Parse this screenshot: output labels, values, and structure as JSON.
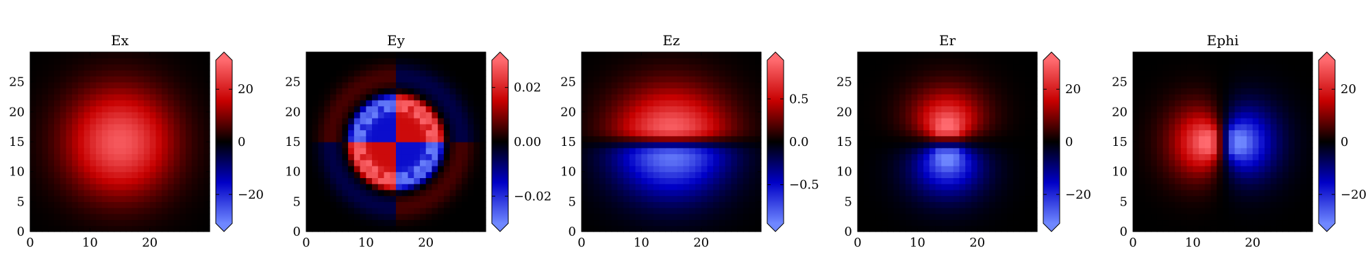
{
  "chart_data": [
    {
      "type": "heatmap",
      "title": "Ex",
      "field": "ex",
      "grid": [
        30,
        30
      ],
      "xlim": [
        0,
        30
      ],
      "ylim": [
        0,
        30
      ],
      "x_ticks": [
        0,
        10,
        20
      ],
      "y_ticks": [
        0,
        5,
        10,
        15,
        20,
        25
      ],
      "colorbar": {
        "range": [
          -31,
          31
        ],
        "extend": "both",
        "ticks": [
          {
            "value": 20,
            "label": "20"
          },
          {
            "value": 0,
            "label": "0"
          },
          {
            "value": -20,
            "label": "−20"
          }
        ]
      },
      "colors": {
        "positive": "#ff6a6f",
        "negative": "#6f87ff",
        "zero": "#000000"
      }
    },
    {
      "type": "heatmap",
      "title": "Ey",
      "field": "ey",
      "grid": [
        30,
        30
      ],
      "xlim": [
        0,
        30
      ],
      "ylim": [
        0,
        30
      ],
      "x_ticks": [
        0,
        10,
        20
      ],
      "y_ticks": [
        0,
        5,
        10,
        15,
        20,
        25
      ],
      "colorbar": {
        "range": [
          -0.03,
          0.03
        ],
        "extend": "both",
        "ticks": [
          {
            "value": 0.02,
            "label": "0.02"
          },
          {
            "value": 0,
            "label": "0.00"
          },
          {
            "value": -0.02,
            "label": "−0.02"
          }
        ]
      },
      "colors": {
        "positive": "#ff6a6f",
        "negative": "#6f87ff",
        "zero": "#000000"
      }
    },
    {
      "type": "heatmap",
      "title": "Ez",
      "field": "ez",
      "grid": [
        30,
        30
      ],
      "xlim": [
        0,
        30
      ],
      "ylim": [
        0,
        30
      ],
      "x_ticks": [
        0,
        10,
        20
      ],
      "y_ticks": [
        0,
        5,
        10,
        15,
        20,
        25
      ],
      "colorbar": {
        "range": [
          -0.95,
          0.95
        ],
        "extend": "both",
        "ticks": [
          {
            "value": 0.5,
            "label": "0.5"
          },
          {
            "value": 0,
            "label": "0.0"
          },
          {
            "value": -0.5,
            "label": "−0.5"
          }
        ]
      },
      "colors": {
        "positive": "#ff6a6f",
        "negative": "#6f87ff",
        "zero": "#000000"
      }
    },
    {
      "type": "heatmap",
      "title": "Er",
      "field": "er",
      "grid": [
        30,
        30
      ],
      "xlim": [
        0,
        30
      ],
      "ylim": [
        0,
        30
      ],
      "x_ticks": [
        0,
        10,
        20
      ],
      "y_ticks": [
        0,
        5,
        10,
        15,
        20,
        25
      ],
      "colorbar": {
        "range": [
          -31,
          31
        ],
        "extend": "both",
        "ticks": [
          {
            "value": 20,
            "label": "20"
          },
          {
            "value": 0,
            "label": "0"
          },
          {
            "value": -20,
            "label": "−20"
          }
        ]
      },
      "colors": {
        "positive": "#ff6a6f",
        "negative": "#6f87ff",
        "zero": "#000000"
      }
    },
    {
      "type": "heatmap",
      "title": "Ephi",
      "field": "ephi",
      "grid": [
        30,
        30
      ],
      "xlim": [
        0,
        30
      ],
      "ylim": [
        0,
        30
      ],
      "x_ticks": [
        0,
        10,
        20
      ],
      "y_ticks": [
        0,
        5,
        10,
        15,
        20,
        25
      ],
      "colorbar": {
        "range": [
          -31,
          31
        ],
        "extend": "both",
        "ticks": [
          {
            "value": 20,
            "label": "20"
          },
          {
            "value": 0,
            "label": "0"
          },
          {
            "value": -20,
            "label": "−20"
          }
        ]
      },
      "colors": {
        "positive": "#ff6a6f",
        "negative": "#6f87ff",
        "zero": "#000000"
      }
    }
  ]
}
